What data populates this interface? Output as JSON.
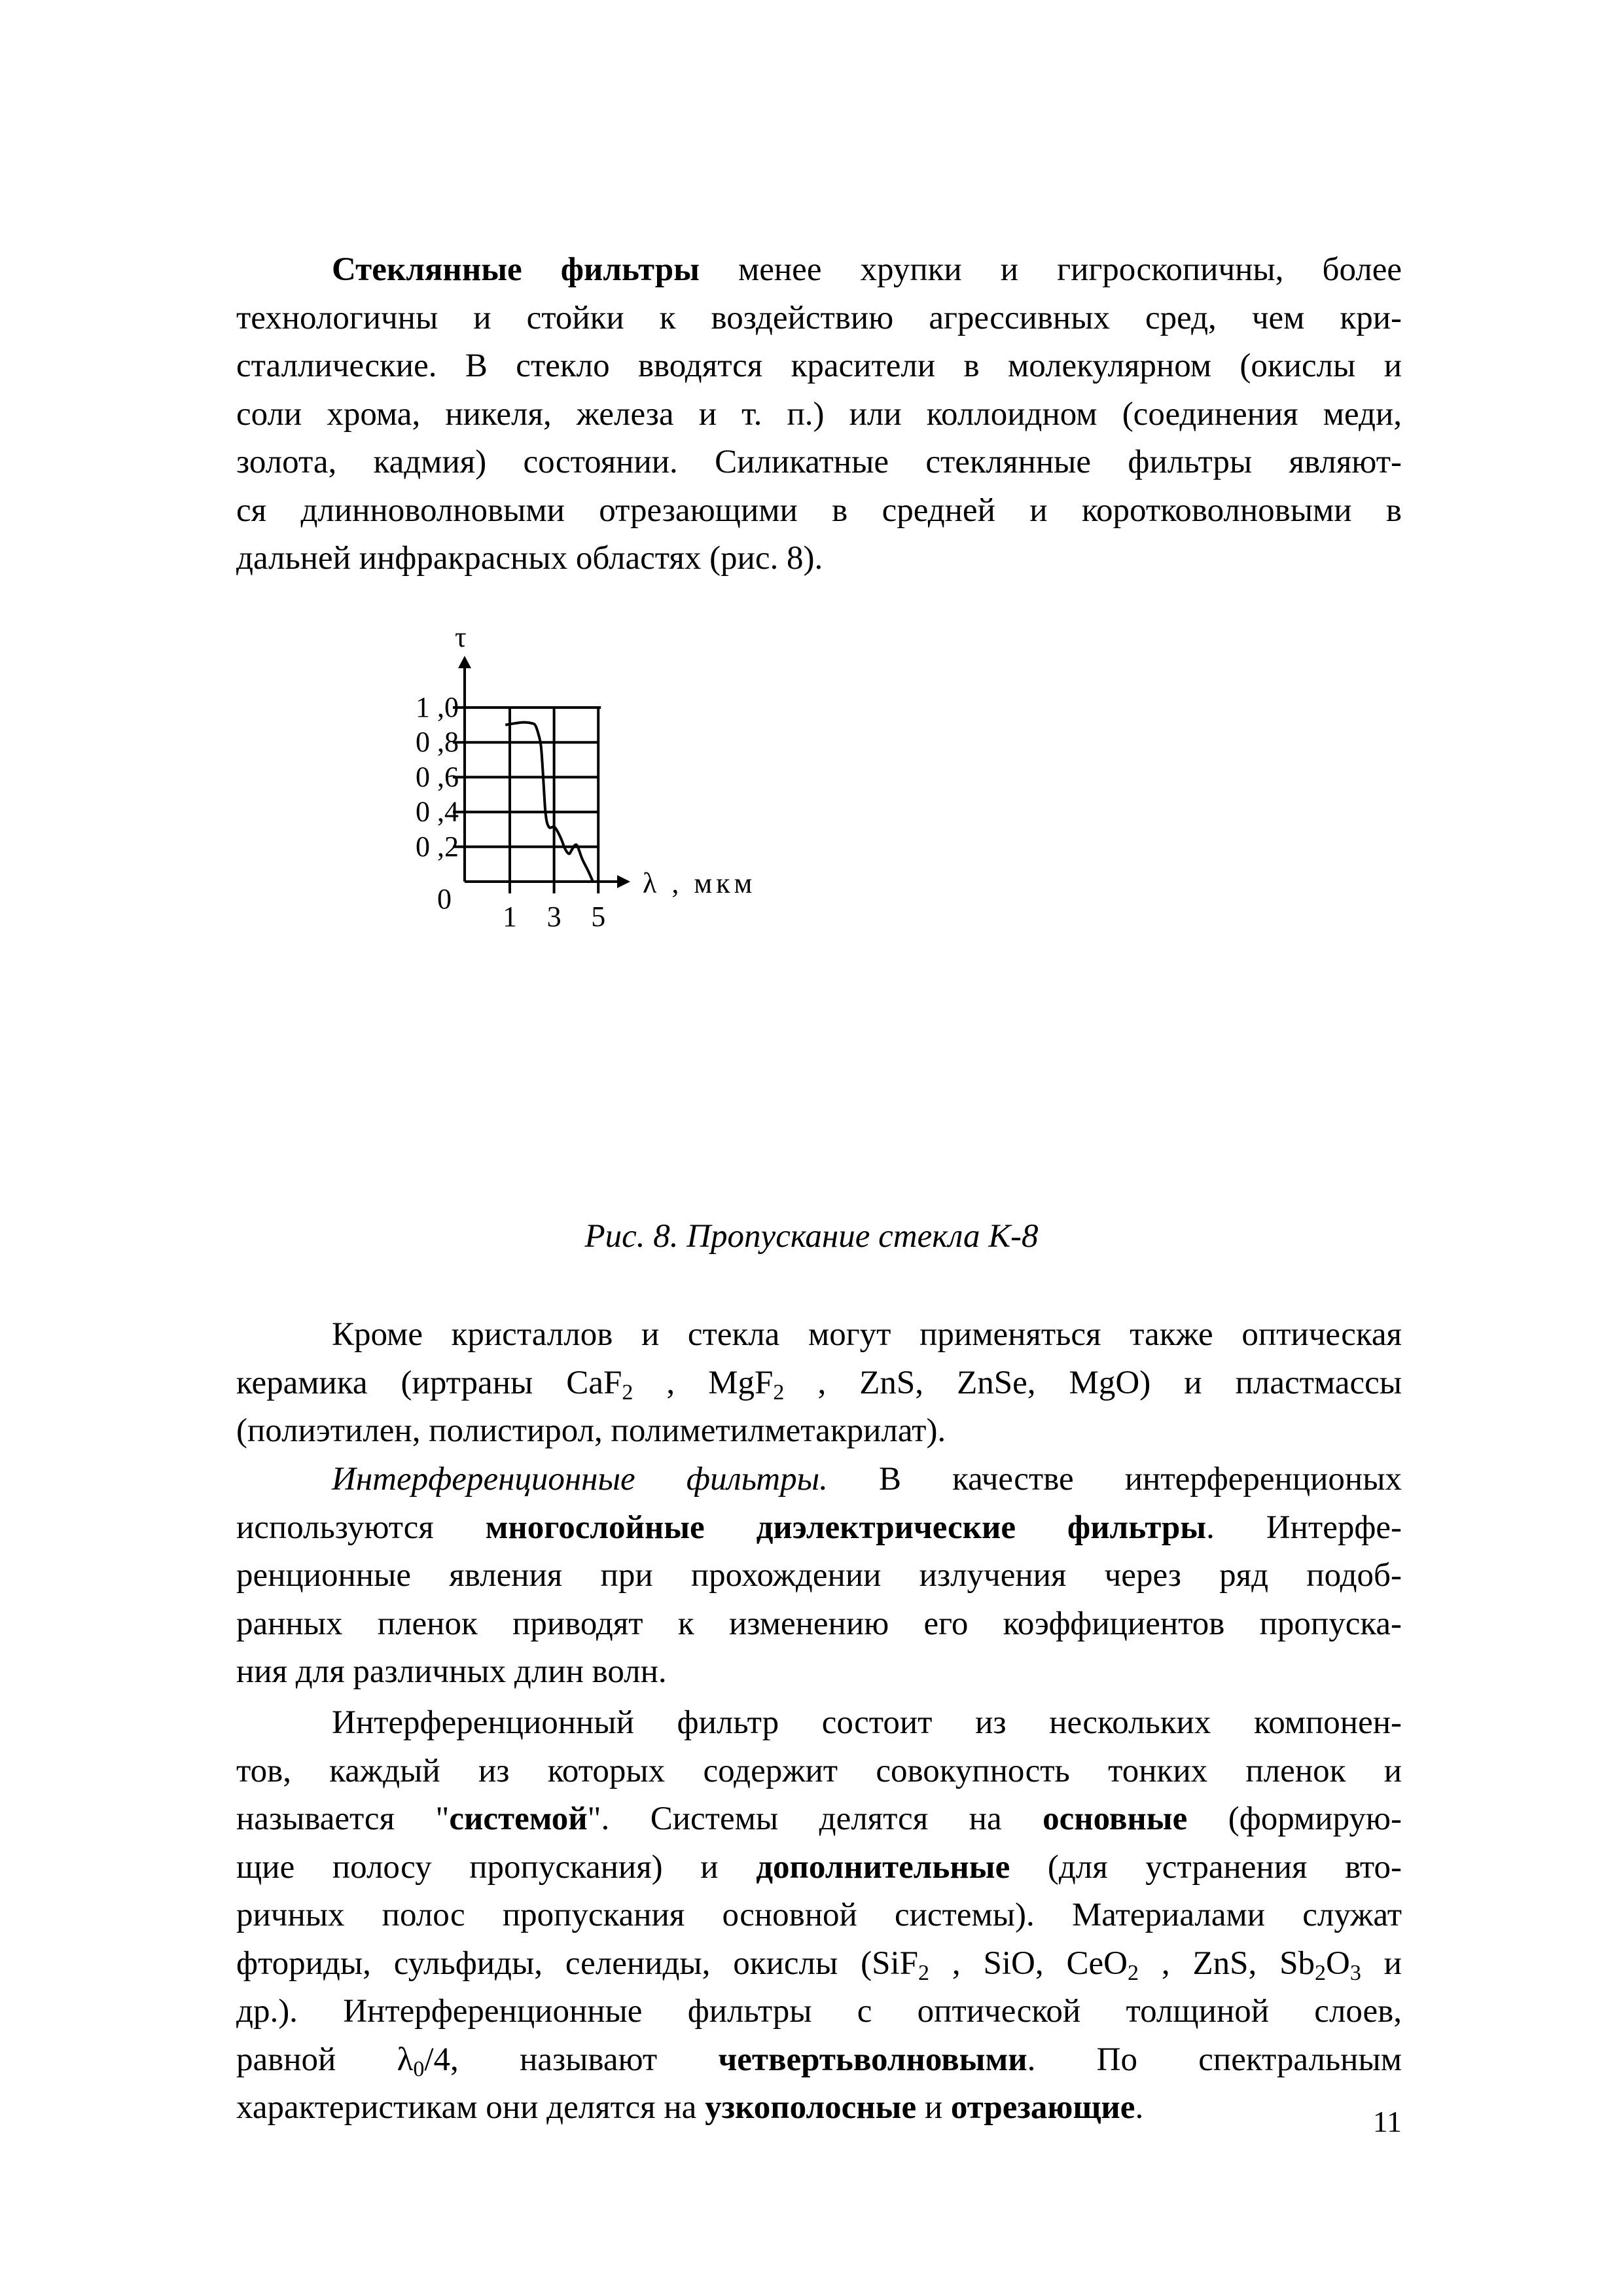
{
  "paragraphs": [
    {
      "lines": [
        [
          {
            "t": "Стеклянные фильтры",
            "b": true
          },
          {
            "t": " менее хрупки и гигроскопичны, более"
          }
        ],
        [
          {
            "t": "технологичны и стойки к воздействию агрессивных сред, чем кри-"
          }
        ],
        [
          {
            "t": "сталлические. В стекло вводятся красители в молекулярном (окислы и"
          }
        ],
        [
          {
            "t": "соли хрома, никеля, железа и т. п.) или коллоидном (соединения меди,"
          }
        ],
        [
          {
            "t": "золота, кадмия) состоянии. Силикатные стеклянные фильтры являют-"
          }
        ],
        [
          {
            "t": "ся длинноволновыми отрезающими в средней и коротковолновыми в"
          }
        ],
        [
          {
            "t": "дальней инфракрасных областях (рис. 8)."
          }
        ]
      ]
    },
    {
      "lines": [
        [
          {
            "t": "Кроме кристаллов и стекла могут применяться также оптическая"
          }
        ],
        [
          {
            "t": "керамика (иртраны CaF"
          },
          {
            "t": "2",
            "sub": true
          },
          {
            "t": " , MgF"
          },
          {
            "t": "2",
            "sub": true
          },
          {
            "t": " , ZnS, ZnSe, MgO) и пластмассы"
          }
        ],
        [
          {
            "t": "(полиэтилен, полистирол, полиметилметакрилат)."
          }
        ]
      ]
    },
    {
      "lines": [
        [
          {
            "t": "Интерференционные фильтры.",
            "i": true
          },
          {
            "t": " В качестве интерференционых"
          }
        ],
        [
          {
            "t": "используются "
          },
          {
            "t": "многослойные диэлектрические фильтры",
            "b": true
          },
          {
            "t": ". Интерфе-"
          }
        ],
        [
          {
            "t": "ренционные явления при прохождении излучения через ряд подоб-"
          }
        ],
        [
          {
            "t": "ранных пленок приводят к изменению его коэффициентов пропуска-"
          }
        ],
        [
          {
            "t": "ния для различных длин волн."
          }
        ]
      ]
    },
    {
      "lines": [
        [
          {
            "t": "Интерференционный фильтр состоит из нескольких компонен-"
          }
        ],
        [
          {
            "t": "тов, каждый из которых содержит совокупность тонких пленок и"
          }
        ],
        [
          {
            "t": "называется \""
          },
          {
            "t": "системой",
            "b": true
          },
          {
            "t": "\". Системы делятся на "
          },
          {
            "t": "основные",
            "b": true
          },
          {
            "t": " (формирую-"
          }
        ],
        [
          {
            "t": "щие полосу пропускания) и "
          },
          {
            "t": "дополнительные",
            "b": true
          },
          {
            "t": " (для устранения вто-"
          }
        ],
        [
          {
            "t": "ричных полос пропускания основной системы). Материалами служат"
          }
        ],
        [
          {
            "t": "фториды, сульфиды, селениды, окислы (SiF"
          },
          {
            "t": "2",
            "sub": true
          },
          {
            "t": " , SiO, CeO"
          },
          {
            "t": "2",
            "sub": true
          },
          {
            "t": " , ZnS, Sb"
          },
          {
            "t": "2",
            "sub": true
          },
          {
            "t": "O"
          },
          {
            "t": "3",
            "sub": true
          },
          {
            "t": " и"
          }
        ],
        [
          {
            "t": "др.). Интерференционные фильтры с оптической толщиной слоев,"
          }
        ],
        [
          {
            "t": "равной λ"
          },
          {
            "t": "0",
            "sub": true
          },
          {
            "t": "/4, называют "
          },
          {
            "t": "четвертьволновыми",
            "b": true
          },
          {
            "t": ". По спектральным"
          }
        ],
        [
          {
            "t": "характеристикам они делятся на "
          },
          {
            "t": "узкополосные",
            "b": true
          },
          {
            "t": " и "
          },
          {
            "t": "отрезающие",
            "b": true
          },
          {
            "t": "."
          }
        ]
      ]
    }
  ],
  "figure": {
    "caption": "Рис. 8. Пропускание стекла К-8"
  },
  "chart_data": {
    "type": "line",
    "ylabel": "τ",
    "xlabel": "λ , мкм",
    "origin_label": "0",
    "y_ticks": [
      "1 ,0",
      "0 ,8",
      "0 ,6",
      "0 ,4",
      "0 ,2"
    ],
    "y_tick_values": [
      1.0,
      0.8,
      0.6,
      0.4,
      0.2
    ],
    "x_ticks": [
      "1",
      "3",
      "5"
    ],
    "x_tick_values": [
      1,
      3,
      5
    ],
    "ylim": [
      0,
      1.0
    ],
    "grid": true,
    "series": [
      {
        "x": [
          0.8,
          1.23,
          1.62,
          2.01,
          2.16,
          2.31,
          2.41,
          2.49,
          2.56,
          2.61,
          2.68,
          2.8,
          3.0,
          3.15,
          3.34,
          3.49,
          3.67,
          3.81,
          3.94,
          4.06,
          4.28,
          4.53,
          4.75
        ],
        "y": [
          0.9,
          0.909,
          0.915,
          0.909,
          0.896,
          0.84,
          0.778,
          0.64,
          0.49,
          0.4,
          0.34,
          0.31,
          0.315,
          0.29,
          0.24,
          0.19,
          0.16,
          0.184,
          0.209,
          0.203,
          0.128,
          0.065,
          0.003
        ]
      }
    ]
  },
  "page_number": "11"
}
